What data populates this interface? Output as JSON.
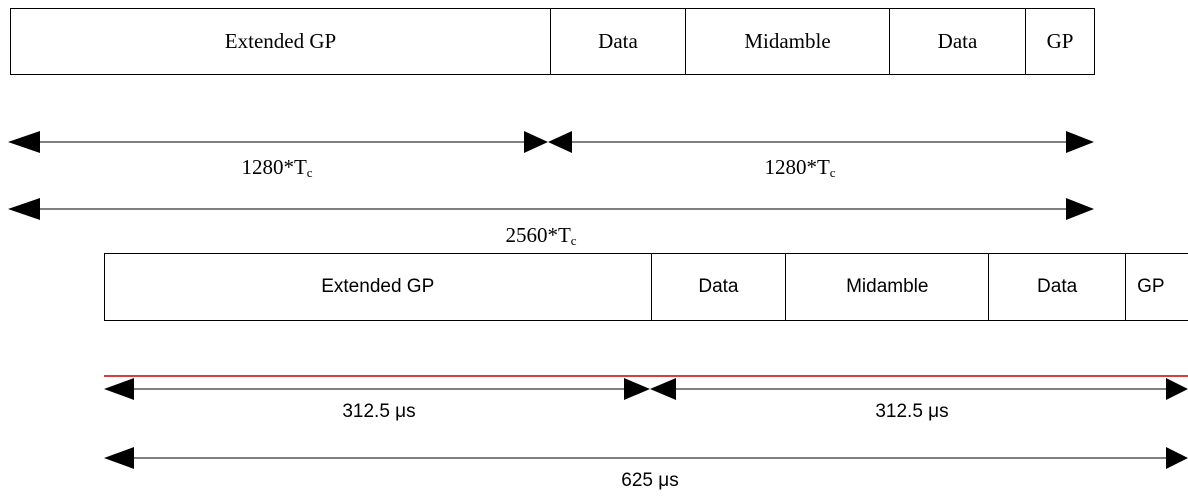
{
  "top_frame": {
    "fields": [
      {
        "label": "Extended GP"
      },
      {
        "label": "Data"
      },
      {
        "label": "Midamble"
      },
      {
        "label": "Data"
      },
      {
        "label": "GP"
      }
    ]
  },
  "bottom_frame": {
    "fields": [
      {
        "label": "Extended GP"
      },
      {
        "label": "Data"
      },
      {
        "label": "Midamble"
      },
      {
        "label": "Data"
      },
      {
        "label": "GP"
      }
    ]
  },
  "chip_measures": {
    "first_half": {
      "value": "1280*T",
      "subscript": "c"
    },
    "second_half": {
      "value": "1280*T",
      "subscript": "c"
    },
    "total": {
      "value": "2560*T",
      "subscript": "c"
    }
  },
  "time_measures": {
    "first_half": "312.5 μs",
    "second_half": "312.5 μs",
    "total": "625 μs"
  },
  "colors": {
    "line": "#000000",
    "highlight_line": "#cc0000"
  }
}
